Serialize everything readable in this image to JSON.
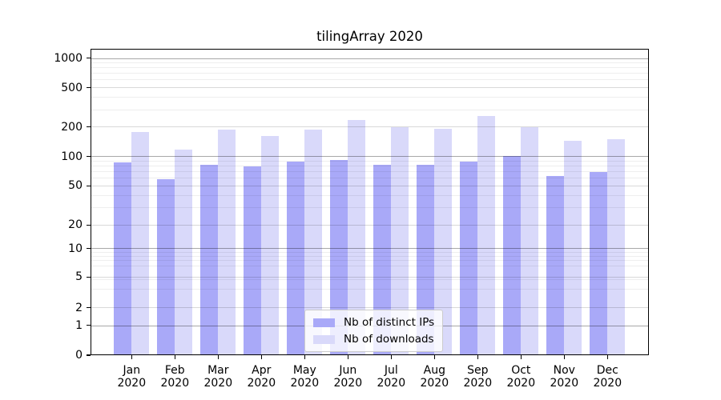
{
  "chart_data": {
    "type": "bar",
    "title": "tilingArray 2020",
    "categories": [
      "Jan",
      "Feb",
      "Mar",
      "Apr",
      "May",
      "Jun",
      "Jul",
      "Aug",
      "Sep",
      "Oct",
      "Nov",
      "Dec"
    ],
    "x_year_label": "2020",
    "series": [
      {
        "name": "Nb of distinct IPs",
        "color": "#a9a9f8",
        "values": [
          88,
          59,
          83,
          79,
          89,
          93,
          83,
          82,
          89,
          101,
          63,
          70
        ]
      },
      {
        "name": "Nb of downloads",
        "color": "#d9d9fa",
        "values": [
          178,
          119,
          188,
          163,
          189,
          237,
          199,
          193,
          261,
          199,
          146,
          150
        ]
      }
    ],
    "y_ticks": [
      0,
      1,
      2,
      5,
      10,
      20,
      50,
      100,
      200,
      500,
      1000
    ],
    "ylim": [
      0,
      1250
    ],
    "yscale": "log",
    "grid": true,
    "legend_position": "lower center"
  }
}
